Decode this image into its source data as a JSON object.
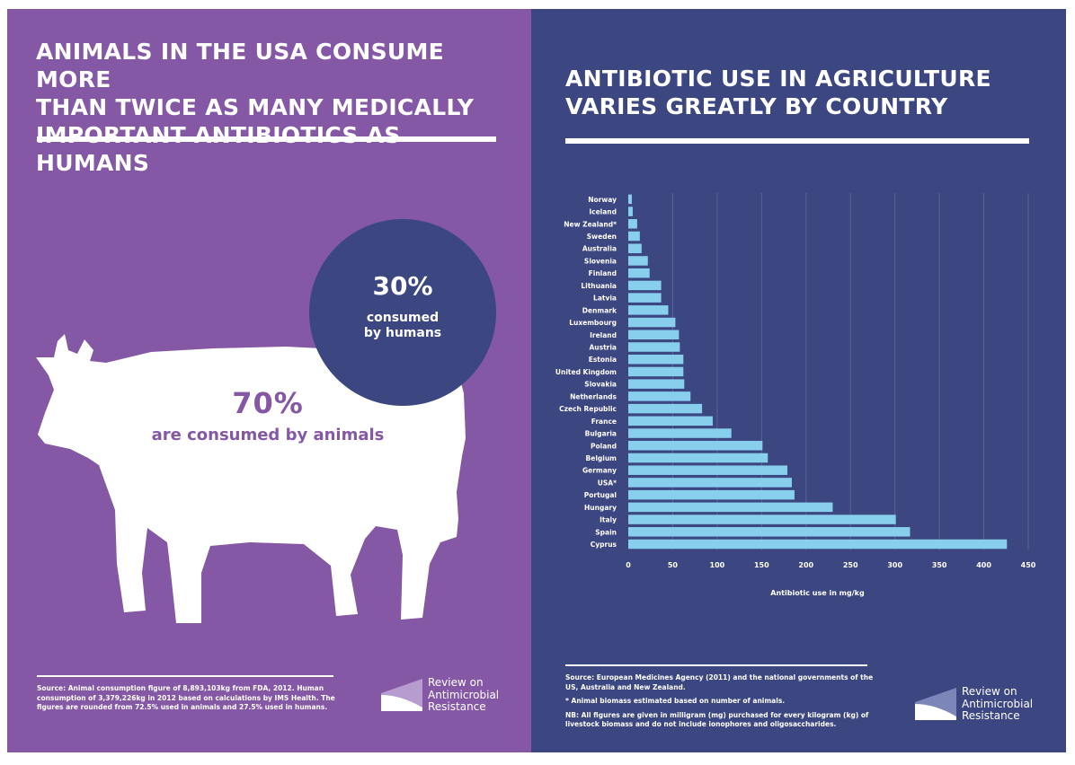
{
  "left": {
    "title": "ANIMALS IN THE USA CONSUME MORE\nTHAN TWICE AS MANY MEDICALLY\nIMPORTANT ANTIBIOTICS AS HUMANS",
    "human_pct": "30%",
    "human_label": "consumed\nby humans",
    "animal_pct": "70%",
    "animal_label": "are consumed by animals",
    "source": "Source: Animal consumption figure of 8,893,103kg from FDA, 2012. Human consumption of 3,379,226kg in 2012 based on calculations by IMS Health. The figures are rounded from 72.5% used in animals and 27.5% used in humans.",
    "logo_text": "Review on\nAntimicrobial\nResistance"
  },
  "right": {
    "title": "ANTIBIOTIC USE IN AGRICULTURE\nVARIES GREATLY BY COUNTRY",
    "source": "Source: European Medicines Agency (2011) and the national governments of the US, Australia and New Zealand.",
    "note_animals": "* Animal biomass estimated based on number of animals.",
    "note_nb": "NB: All figures are given in milligram (mg) purchased for every kilogram (kg) of livestock biomass and do not include ionophores and oligosaccharides.",
    "logo_text": "Review on\nAntimicrobial\nResistance"
  },
  "colors": {
    "left_bg": "#8458a5",
    "right_bg": "#3c4680",
    "bar": "#88cfee",
    "white": "#ffffff"
  },
  "chart_data": {
    "type": "bar",
    "orientation": "horizontal",
    "categories": [
      "Norway",
      "Iceland",
      "New Zealand*",
      "Sweden",
      "Australia",
      "Slovenia",
      "Finland",
      "Lithuania",
      "Latvia",
      "Denmark",
      "Luxembourg",
      "Ireland",
      "Austria",
      "Estonia",
      "United Kingdom",
      "Slovakia",
      "Netherlands",
      "Czech Republic",
      "France",
      "Bulgaria",
      "Poland",
      "Belgium",
      "Germany",
      "USA*",
      "Portugal",
      "Hungary",
      "Italy",
      "Spain",
      "Cyprus"
    ],
    "values": [
      4,
      5,
      10,
      13,
      15,
      22,
      24,
      37,
      37,
      45,
      53,
      57,
      58,
      62,
      62,
      63,
      70,
      83,
      95,
      116,
      151,
      157,
      179,
      184,
      187,
      230,
      301,
      317,
      426
    ],
    "xlabel": "Antibiotic use in mg/kg",
    "ylabel": "",
    "xlim": [
      0,
      450
    ],
    "xticks": [
      0,
      50,
      100,
      150,
      200,
      250,
      300,
      350,
      400,
      450
    ],
    "grid": "vertical"
  }
}
